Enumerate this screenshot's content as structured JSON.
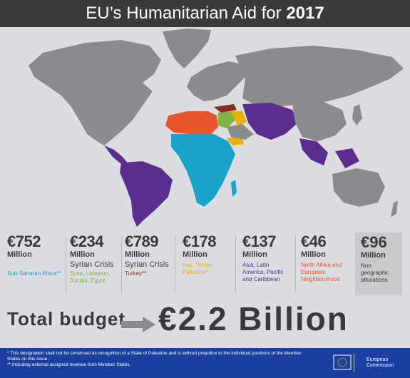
{
  "header": {
    "title_prefix": "EU’s Humanitarian Aid for",
    "title_year": "2017"
  },
  "allocations": [
    {
      "amount": "€752",
      "unit": "Million",
      "label": "",
      "sub": "Sub-Saharan Africa**",
      "sub_color": "#1aa3c9"
    },
    {
      "amount": "€234",
      "unit": "Million",
      "label": "Syrian Crisis",
      "sub": "Syria, Lebanon, Jordan, Egypt",
      "sub_color": "#7cb342"
    },
    {
      "amount": "€789",
      "unit": "Million",
      "label": "Syrian Crisis",
      "sub": "Turkey**",
      "sub_color": "#8b2a1e"
    },
    {
      "amount": "€178",
      "unit": "Million",
      "label": "",
      "sub": "Iraq, Yemen, Palestine*",
      "sub_color": "#e8b100"
    },
    {
      "amount": "€137",
      "unit": "Million",
      "label": "",
      "sub": "Asia, Latin America, Pacific and Caribbean",
      "sub_color": "#5b2d8e"
    },
    {
      "amount": "€46",
      "unit": "Million",
      "label": "",
      "sub": "North Africa and European Neighbourhood",
      "sub_color": "#e8552a"
    },
    {
      "amount": "€96",
      "unit": "Million",
      "label": "",
      "sub": "Non geographic allocations",
      "sub_color": "#3a3a3c"
    }
  ],
  "total": {
    "label": "Total budget",
    "value": "€2.2 Billion"
  },
  "footer": {
    "note1": "* This designation shall not be construed as recognition of a State of Palestine and is without prejudice to the individual positions of the Member States on this issue.",
    "note2": "** Including external assigned revenue from Member States.",
    "logo_line1": "European",
    "logo_line2": "Commission"
  },
  "colors": {
    "land": "#8a8b8e",
    "africa": "#1aa3c9",
    "asia_latam": "#5b2d8e",
    "north_africa": "#e8552a",
    "mideast": "#e8b100",
    "syria_region": "#7cb342",
    "turkey": "#8b2a1e"
  }
}
